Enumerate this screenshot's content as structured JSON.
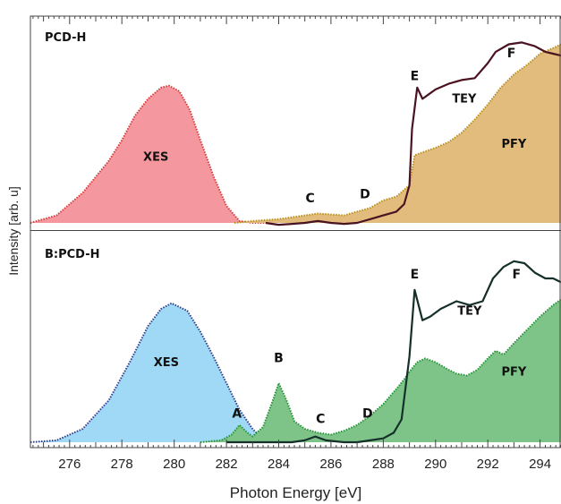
{
  "chart_data": {
    "type": "area",
    "xlabel": "Photon Energy [eV]",
    "ylabel": "Intensity [arb. u]",
    "xlim": [
      274.5,
      294.8
    ],
    "xticks": [
      276,
      278,
      280,
      282,
      284,
      286,
      288,
      290,
      292,
      294
    ],
    "grid": false,
    "panels": [
      {
        "title": "PCD-H",
        "ylim": [
          0,
          1
        ],
        "series": [
          {
            "name": "XES",
            "kind": "filled",
            "color": "#f4979e",
            "edge": "#d83c3c",
            "x": [
              274.5,
              275.5,
              276.5,
              277.5,
              278.0,
              278.5,
              279.0,
              279.5,
              279.8,
              280.2,
              280.6,
              281.0,
              281.5,
              282.0,
              282.5,
              283.0,
              283.5
            ],
            "y": [
              0.0,
              0.04,
              0.16,
              0.33,
              0.44,
              0.57,
              0.66,
              0.72,
              0.73,
              0.7,
              0.6,
              0.44,
              0.25,
              0.09,
              0.01,
              0.0,
              0.0
            ]
          },
          {
            "name": "PFY",
            "kind": "filled",
            "color": "#e2bc7d",
            "edge": "#b8901f",
            "x": [
              282.3,
              283.0,
              284.0,
              285.0,
              285.5,
              286.5,
              287.0,
              287.5,
              288.0,
              288.5,
              289.0,
              289.2,
              289.6,
              290.0,
              290.5,
              291.0,
              291.5,
              292.0,
              292.5,
              293.0,
              293.5,
              294.0,
              294.5,
              294.8
            ],
            "y": [
              0.0,
              0.01,
              0.02,
              0.04,
              0.05,
              0.04,
              0.06,
              0.08,
              0.12,
              0.14,
              0.2,
              0.36,
              0.38,
              0.4,
              0.43,
              0.48,
              0.55,
              0.63,
              0.72,
              0.79,
              0.84,
              0.9,
              0.93,
              0.95
            ]
          },
          {
            "name": "TEY",
            "kind": "line",
            "color": "#4a1322",
            "x": [
              283.5,
              284.0,
              284.5,
              285.0,
              285.5,
              286.0,
              286.5,
              287.0,
              287.5,
              288.0,
              288.5,
              288.8,
              289.0,
              289.1,
              289.3,
              289.5,
              289.7,
              290.0,
              290.5,
              291.0,
              291.5,
              292.0,
              292.3,
              292.8,
              293.3,
              293.8,
              294.2,
              294.5,
              294.8
            ],
            "y": [
              0.0,
              -0.01,
              -0.005,
              0.0,
              0.01,
              0.0,
              -0.005,
              0.0,
              0.02,
              0.04,
              0.06,
              0.1,
              0.2,
              0.5,
              0.72,
              0.66,
              0.68,
              0.71,
              0.74,
              0.76,
              0.77,
              0.85,
              0.91,
              0.95,
              0.96,
              0.94,
              0.91,
              0.9,
              0.89
            ]
          }
        ],
        "labels": [
          {
            "text": "XES",
            "x": 279.3,
            "y": 0.33
          },
          {
            "text": "C",
            "x": 285.2,
            "y": 0.11
          },
          {
            "text": "D",
            "x": 287.3,
            "y": 0.13
          },
          {
            "text": "E",
            "x": 289.2,
            "y": 0.76
          },
          {
            "text": "TEY",
            "x": 291.1,
            "y": 0.64
          },
          {
            "text": "F",
            "x": 292.9,
            "y": 0.88
          },
          {
            "text": "PFY",
            "x": 293.0,
            "y": 0.4
          }
        ]
      },
      {
        "title": "B:PCD-H",
        "ylim": [
          0,
          1
        ],
        "series": [
          {
            "name": "XES",
            "kind": "filled",
            "color": "#9fd9f5",
            "edge": "#2f3d8c",
            "x": [
              274.5,
              275.5,
              276.5,
              277.5,
              278.3,
              279.0,
              279.5,
              279.9,
              280.5,
              281.0,
              281.5,
              282.0,
              282.5,
              283.0,
              283.5
            ],
            "y": [
              0.0,
              0.01,
              0.07,
              0.22,
              0.42,
              0.61,
              0.7,
              0.73,
              0.69,
              0.58,
              0.45,
              0.31,
              0.17,
              0.07,
              0.0
            ]
          },
          {
            "name": "PFY",
            "kind": "filled",
            "color": "#7ec388",
            "edge": "#27943a",
            "x": [
              281.0,
              281.8,
              282.2,
              282.5,
              282.8,
              283.0,
              283.4,
              283.8,
              284.0,
              284.3,
              284.6,
              285.0,
              285.5,
              286.0,
              286.5,
              287.0,
              287.5,
              288.0,
              288.5,
              288.8,
              289.0,
              289.3,
              289.6,
              290.0,
              290.5,
              290.8,
              291.2,
              291.6,
              292.0,
              292.3,
              292.6,
              293.0,
              293.5,
              294.0,
              294.5,
              294.8
            ],
            "y": [
              0.0,
              0.01,
              0.04,
              0.09,
              0.05,
              0.03,
              0.08,
              0.23,
              0.31,
              0.22,
              0.11,
              0.07,
              0.05,
              0.04,
              0.06,
              0.09,
              0.14,
              0.2,
              0.28,
              0.33,
              0.37,
              0.42,
              0.44,
              0.42,
              0.38,
              0.36,
              0.35,
              0.38,
              0.44,
              0.48,
              0.46,
              0.52,
              0.59,
              0.66,
              0.72,
              0.75
            ]
          },
          {
            "name": "TEY",
            "kind": "line",
            "color": "#15302a",
            "x": [
              282.0,
              283.5,
              284.5,
              285.0,
              285.4,
              285.8,
              286.5,
              287.0,
              287.5,
              288.0,
              288.4,
              288.7,
              289.0,
              289.2,
              289.5,
              289.8,
              290.2,
              290.8,
              291.3,
              291.8,
              292.2,
              292.6,
              293.0,
              293.4,
              293.8,
              294.2,
              294.5,
              294.8
            ],
            "y": [
              0.0,
              0.0,
              0.0,
              0.01,
              0.03,
              0.01,
              0.0,
              0.0,
              0.01,
              0.02,
              0.05,
              0.12,
              0.45,
              0.8,
              0.64,
              0.66,
              0.7,
              0.74,
              0.72,
              0.74,
              0.86,
              0.92,
              0.95,
              0.94,
              0.89,
              0.86,
              0.86,
              0.84
            ]
          }
        ],
        "labels": [
          {
            "text": "XES",
            "x": 279.7,
            "y": 0.4
          },
          {
            "text": "A",
            "x": 282.4,
            "y": 0.13
          },
          {
            "text": "B",
            "x": 284.0,
            "y": 0.42
          },
          {
            "text": "C",
            "x": 285.6,
            "y": 0.1
          },
          {
            "text": "D",
            "x": 287.4,
            "y": 0.13
          },
          {
            "text": "E",
            "x": 289.2,
            "y": 0.86
          },
          {
            "text": "TEY",
            "x": 291.3,
            "y": 0.67
          },
          {
            "text": "F",
            "x": 293.1,
            "y": 0.86
          },
          {
            "text": "PFY",
            "x": 293.0,
            "y": 0.35
          }
        ]
      }
    ]
  }
}
